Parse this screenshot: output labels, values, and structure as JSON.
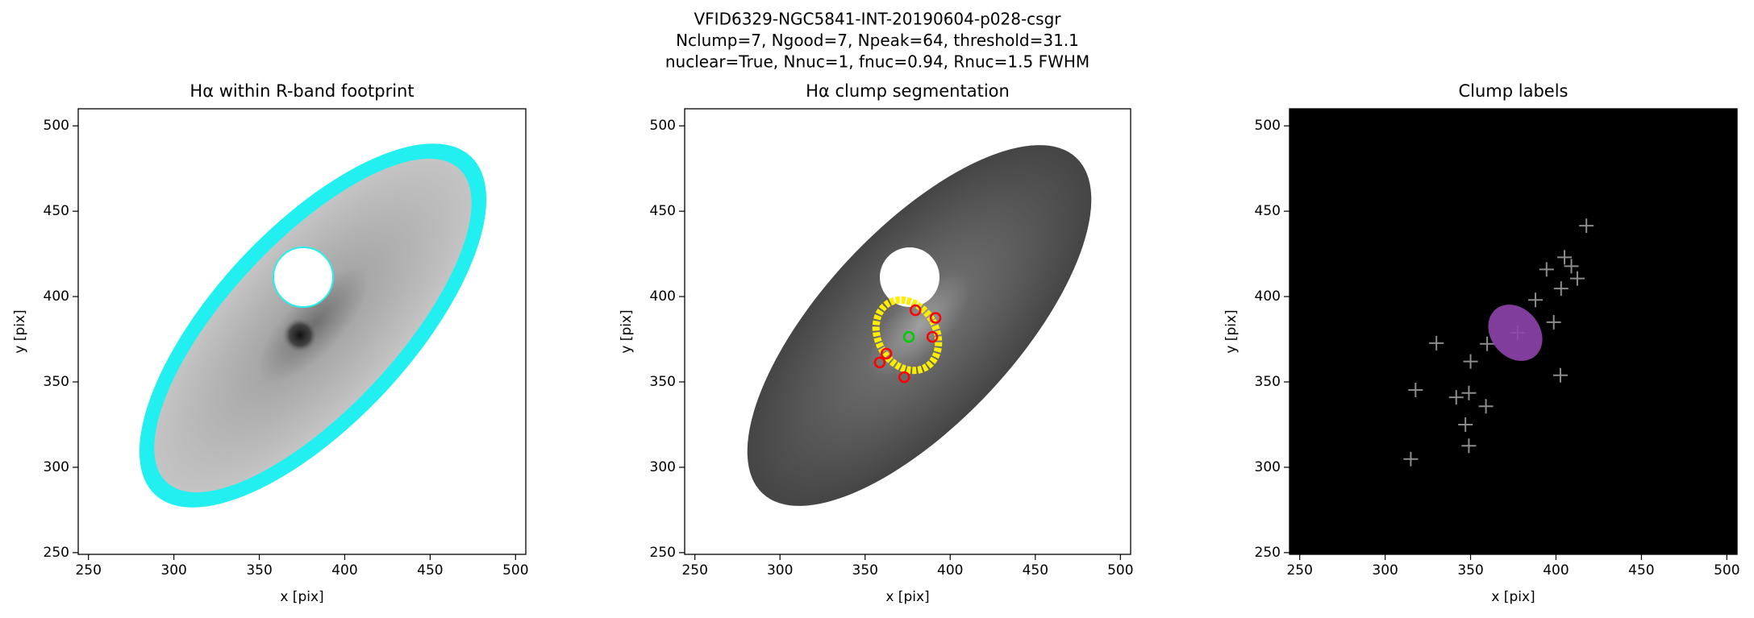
{
  "figure_title": [
    "VFID6329-NGC5841-INT-20190604-p028-csgr",
    "Nclump=7, Ngood=7, Npeak=64, threshold=31.1",
    "nuclear=True, Nnuc=1, fnuc=0.94, Rnuc=1.5 FWHM"
  ],
  "chart_data": [
    {
      "type": "image",
      "title": "Hα within R-band footprint",
      "xlabel": "x [pix]",
      "ylabel": "y [pix]",
      "facecolor": "#ffffff",
      "xlim": [
        244,
        506
      ],
      "ylim": [
        249,
        510
      ],
      "xticks": [
        250,
        300,
        350,
        400,
        450,
        500
      ],
      "yticks": [
        250,
        300,
        350,
        400,
        450,
        500
      ],
      "series": []
    },
    {
      "type": "image",
      "title": "Hα clump segmentation",
      "xlabel": "x [pix]",
      "ylabel": "y [pix]",
      "facecolor": "#ffffff",
      "xlim": [
        244,
        506
      ],
      "ylim": [
        249,
        510
      ],
      "xticks": [
        250,
        300,
        350,
        400,
        450,
        500
      ],
      "yticks": [
        250,
        300,
        350,
        400,
        450,
        500
      ],
      "series": [
        {
          "color": "#ff0000",
          "marker": "circle",
          "x": [
            379.6,
            391.4,
            389.5,
            362.5,
            358.6,
            373.0
          ],
          "values": [
            392.0,
            387.5,
            376.4,
            366.6,
            361.4,
            352.8
          ]
        },
        {
          "color": "#00cc00",
          "marker": "circle",
          "x": [
            375.7
          ],
          "values": [
            376.4
          ]
        }
      ]
    },
    {
      "type": "image",
      "title": "Clump labels",
      "xlabel": "x [pix]",
      "ylabel": "y [pix]",
      "facecolor": "#000000",
      "xlim": [
        244,
        506
      ],
      "ylim": [
        249,
        510
      ],
      "xticks": [
        250,
        300,
        350,
        400,
        450,
        500
      ],
      "yticks": [
        250,
        300,
        350,
        400,
        450,
        500
      ],
      "series": [
        {
          "color": "#8c8c8c",
          "marker": "plus",
          "x": [
            417.8,
            405.0,
            394.5,
            409.0,
            412.5,
            403.0,
            388.0,
            398.7,
            402.6,
            330.0,
            317.8,
            315.0,
            349.0,
            347.0,
            349.0,
            341.6,
            359.0,
            350.0,
            359.7,
            377.5
          ],
          "values": [
            441.5,
            423.0,
            415.9,
            417.8,
            410.6,
            404.7,
            398.0,
            385.0,
            353.9,
            372.7,
            345.3,
            304.8,
            312.6,
            325.0,
            343.5,
            341.0,
            335.7,
            362.0,
            372.3,
            378.8
          ]
        }
      ]
    }
  ]
}
